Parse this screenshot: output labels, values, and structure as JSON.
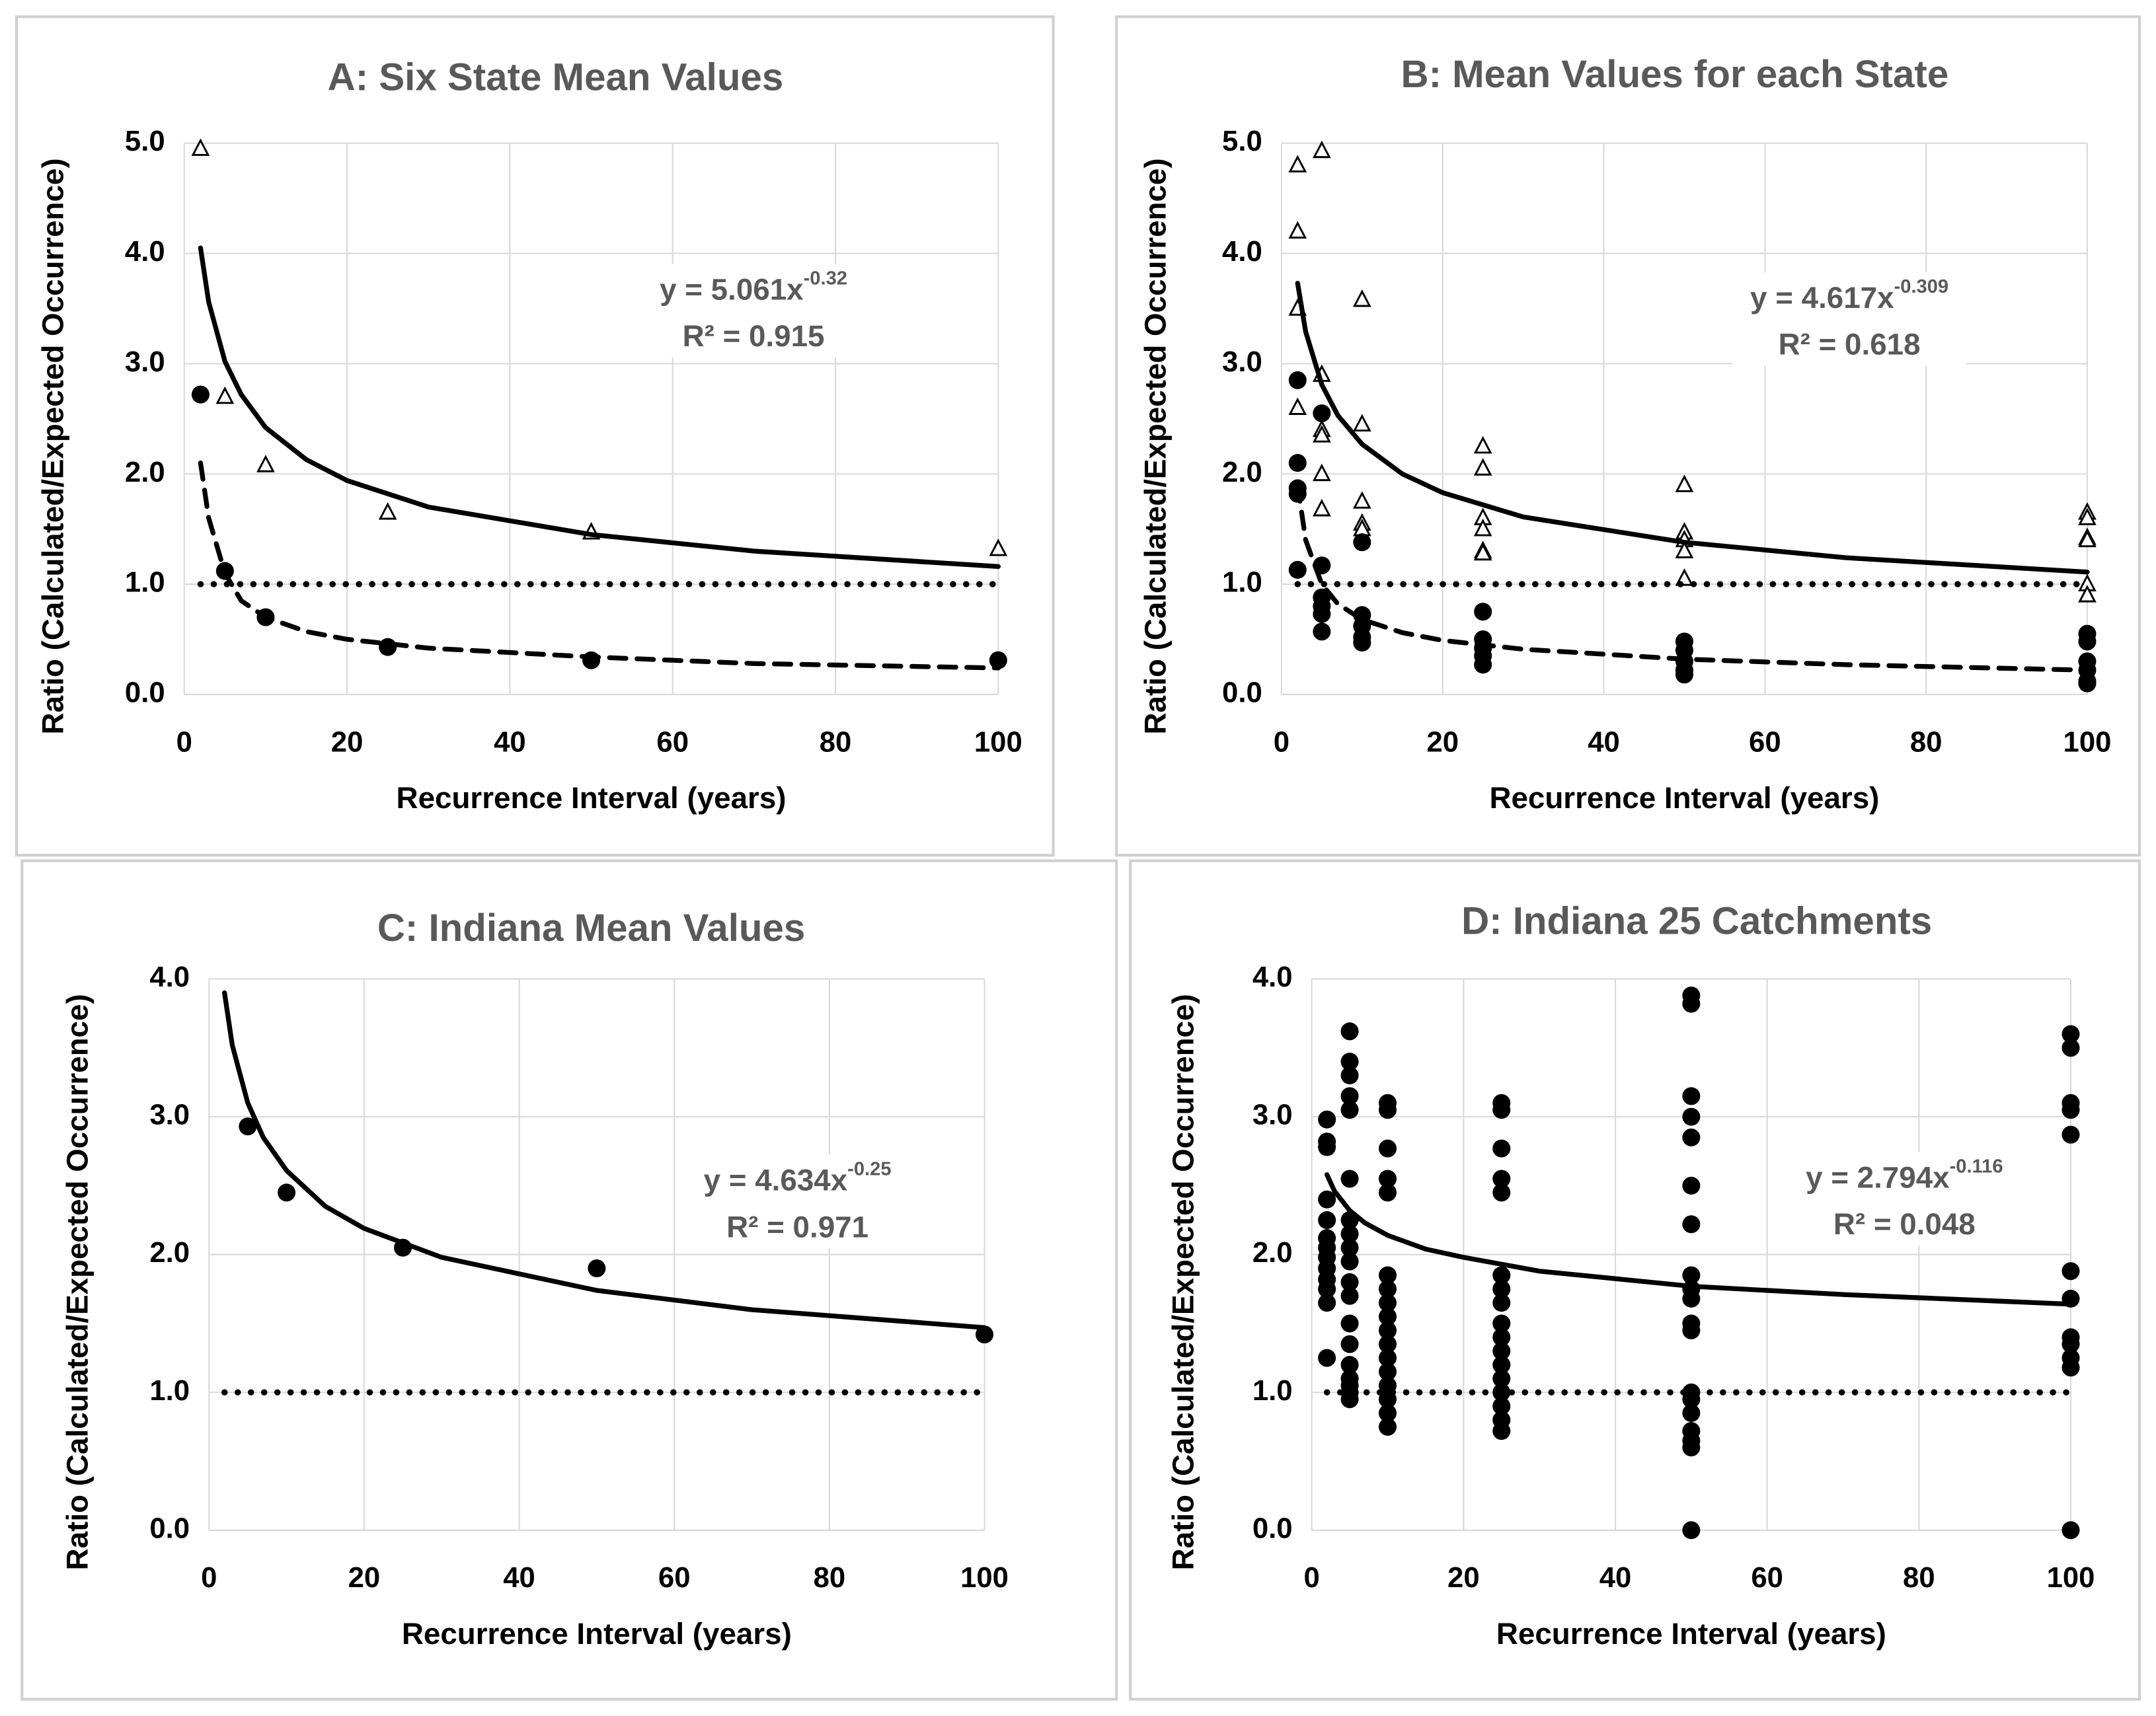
{
  "chart_data": [
    {
      "type": "scatter",
      "title": "A:  Six State Mean Values",
      "xlabel": "Recurrence Interval (years)",
      "ylabel": "Ratio (Calculated/Expected Occurrence)",
      "equation": "y = 5.061x",
      "equation_exponent": "-0.32",
      "r2": "R² = 0.915",
      "xlim": [
        0,
        100
      ],
      "xticks": [
        0,
        20,
        40,
        60,
        80,
        100
      ],
      "ylim": [
        0,
        5
      ],
      "yticks": [
        {
          "value": 0,
          "label": "0.0"
        },
        {
          "value": 1,
          "label": "1.0"
        },
        {
          "value": 2,
          "label": "2.0"
        },
        {
          "value": 3,
          "label": "3.0"
        },
        {
          "value": 4,
          "label": "4.0"
        },
        {
          "value": 5,
          "label": "5.0"
        }
      ],
      "grid": true,
      "series": [
        {
          "marker": "triangle",
          "color": "#000000",
          "x": [
            2,
            5,
            10,
            25,
            50,
            100
          ],
          "values": [
            4.95,
            2.7,
            2.08,
            1.65,
            1.47,
            1.32
          ]
        },
        {
          "marker": "circle",
          "color": "#000000",
          "x": [
            2,
            5,
            10,
            25,
            50,
            100
          ],
          "values": [
            2.72,
            1.12,
            0.7,
            0.43,
            0.31,
            0.31
          ]
        },
        {
          "line": "solid",
          "color": "#000000",
          "x": [
            2,
            3,
            5,
            7,
            10,
            15,
            20,
            30,
            50,
            70,
            100
          ],
          "values": [
            4.05,
            3.56,
            3.02,
            2.72,
            2.42,
            2.13,
            1.94,
            1.7,
            1.45,
            1.3,
            1.16
          ]
        },
        {
          "line": "dashed",
          "color": "#000000",
          "x": [
            2,
            3,
            5,
            7,
            10,
            15,
            20,
            30,
            50,
            70,
            100
          ],
          "values": [
            2.1,
            1.6,
            1.1,
            0.85,
            0.7,
            0.57,
            0.5,
            0.42,
            0.34,
            0.28,
            0.24
          ]
        },
        {
          "line": "dotted",
          "color": "#000000",
          "x": [
            2,
            100
          ],
          "values": [
            1,
            1
          ]
        }
      ]
    },
    {
      "type": "scatter",
      "title": "B: Mean Values for each State",
      "xlabel": "Recurrence Interval (years)",
      "ylabel": "Ratio (Calculated/Expected Occurrence)",
      "equation": "y = 4.617x",
      "equation_exponent": "-0.309",
      "r2": "R² = 0.618",
      "xlim": [
        0,
        100
      ],
      "xticks": [
        0,
        20,
        40,
        60,
        80,
        100
      ],
      "ylim": [
        0,
        5
      ],
      "yticks": [
        {
          "value": 0,
          "label": "0.0"
        },
        {
          "value": 1,
          "label": "1.0"
        },
        {
          "value": 2,
          "label": "2.0"
        },
        {
          "value": 3,
          "label": "3.0"
        },
        {
          "value": 4,
          "label": "4.0"
        },
        {
          "value": 5,
          "label": "5.0"
        }
      ],
      "grid": true,
      "series": [
        {
          "marker": "triangle",
          "color": "#000000",
          "x": [
            2,
            2,
            2,
            2,
            5,
            5,
            5,
            5,
            5,
            5,
            10,
            10,
            10,
            10,
            10,
            25,
            25,
            25,
            25,
            25,
            25,
            50,
            50,
            50,
            50,
            50,
            100,
            100,
            100,
            100,
            100,
            100
          ],
          "values": [
            4.8,
            4.2,
            3.5,
            2.6,
            4.93,
            2.9,
            2.4,
            2.35,
            2.0,
            1.68,
            3.58,
            2.45,
            1.75,
            1.55,
            1.5,
            2.25,
            2.05,
            1.6,
            1.5,
            1.3,
            1.28,
            1.9,
            1.47,
            1.4,
            1.3,
            1.05,
            1.65,
            1.6,
            1.42,
            1.4,
            1.0,
            0.9
          ]
        },
        {
          "marker": "circle",
          "color": "#000000",
          "x": [
            2,
            2,
            2,
            2,
            2,
            5,
            5,
            5,
            5,
            5,
            5,
            10,
            10,
            10,
            10,
            10,
            25,
            25,
            25,
            25,
            25,
            50,
            50,
            50,
            50,
            50,
            100,
            100,
            100,
            100,
            100,
            100
          ],
          "values": [
            2.85,
            2.1,
            1.87,
            1.82,
            1.13,
            2.55,
            1.17,
            0.88,
            0.8,
            0.73,
            0.57,
            1.38,
            0.72,
            0.62,
            0.52,
            0.47,
            0.75,
            0.5,
            0.42,
            0.35,
            0.27,
            0.48,
            0.4,
            0.3,
            0.22,
            0.18,
            0.55,
            0.48,
            0.3,
            0.22,
            0.12,
            0.1
          ]
        },
        {
          "line": "solid",
          "color": "#000000",
          "x": [
            2,
            3,
            5,
            7,
            10,
            15,
            20,
            30,
            50,
            70,
            100
          ],
          "values": [
            3.73,
            3.29,
            2.81,
            2.53,
            2.27,
            2.0,
            1.83,
            1.61,
            1.38,
            1.24,
            1.11
          ]
        },
        {
          "line": "dashed",
          "color": "#000000",
          "x": [
            2,
            3,
            5,
            7,
            10,
            15,
            20,
            30,
            50,
            70,
            100
          ],
          "values": [
            1.9,
            1.4,
            1.0,
            0.82,
            0.68,
            0.56,
            0.49,
            0.41,
            0.32,
            0.27,
            0.22
          ]
        },
        {
          "line": "dotted",
          "color": "#000000",
          "x": [
            2,
            100
          ],
          "values": [
            1,
            1
          ]
        }
      ]
    },
    {
      "type": "scatter",
      "title": "C: Indiana Mean Values",
      "xlabel": "Recurrence Interval (years)",
      "ylabel": "Ratio (Calculated/Expected Occurrence)",
      "equation": "y = 4.634x",
      "equation_exponent": "-0.25",
      "r2": "R² = 0.971",
      "xlim": [
        0,
        100
      ],
      "xticks": [
        0,
        20,
        40,
        60,
        80,
        100
      ],
      "ylim": [
        0,
        4
      ],
      "yticks": [
        {
          "value": 0,
          "label": "0.0"
        },
        {
          "value": 1,
          "label": "1.0"
        },
        {
          "value": 2,
          "label": "2.0"
        },
        {
          "value": 3,
          "label": "3.0"
        },
        {
          "value": 4,
          "label": "4.0"
        }
      ],
      "grid": true,
      "series": [
        {
          "marker": "circle",
          "color": "#000000",
          "x": [
            5,
            10,
            25,
            50,
            100
          ],
          "values": [
            2.93,
            2.45,
            2.05,
            1.9,
            1.42
          ]
        },
        {
          "line": "solid",
          "color": "#000000",
          "x": [
            2,
            3,
            5,
            7,
            10,
            15,
            20,
            30,
            50,
            70,
            100
          ],
          "values": [
            3.9,
            3.52,
            3.1,
            2.85,
            2.61,
            2.35,
            2.19,
            1.98,
            1.74,
            1.6,
            1.47
          ]
        },
        {
          "line": "dotted",
          "color": "#000000",
          "x": [
            2,
            100
          ],
          "values": [
            1,
            1
          ]
        }
      ]
    },
    {
      "type": "scatter",
      "title": "D: Indiana 25 Catchments",
      "xlabel": "Recurrence Interval (years)",
      "ylabel": "Ratio (Calculated/Expected Occurrence)",
      "equation": "y = 2.794x",
      "equation_exponent": "-0.116",
      "r2": "R² = 0.048",
      "xlim": [
        0,
        100
      ],
      "xticks": [
        0,
        20,
        40,
        60,
        80,
        100
      ],
      "ylim": [
        0,
        4
      ],
      "yticks": [
        {
          "value": 0,
          "label": "0.0"
        },
        {
          "value": 1,
          "label": "1.0"
        },
        {
          "value": 2,
          "label": "2.0"
        },
        {
          "value": 3,
          "label": "3.0"
        },
        {
          "value": 4,
          "label": "4.0"
        }
      ],
      "grid": true,
      "series": [
        {
          "marker": "circle",
          "color": "#000000",
          "x": [
            2,
            2,
            2,
            2,
            2,
            2,
            2,
            2,
            2,
            2,
            2,
            2,
            2,
            5,
            5,
            5,
            5,
            5,
            5,
            5,
            5,
            5,
            5,
            5,
            5,
            5,
            5,
            5,
            5,
            5,
            5,
            5,
            10,
            10,
            10,
            10,
            10,
            10,
            10,
            10,
            10,
            10,
            10,
            10,
            10,
            10,
            10,
            10,
            10,
            25,
            25,
            25,
            25,
            25,
            25,
            25,
            25,
            25,
            25,
            25,
            25,
            25,
            25,
            25,
            25,
            25,
            50,
            50,
            50,
            50,
            50,
            50,
            50,
            50,
            50,
            50,
            50,
            50,
            50,
            50,
            50,
            50,
            50,
            50,
            50,
            100,
            100,
            100,
            100,
            100,
            100,
            100,
            100,
            100,
            100,
            100,
            100
          ],
          "values": [
            2.98,
            2.82,
            2.78,
            2.4,
            2.25,
            2.12,
            2.05,
            1.98,
            1.9,
            1.82,
            1.75,
            1.65,
            1.25,
            3.62,
            3.4,
            3.3,
            3.15,
            3.05,
            2.55,
            2.25,
            2.15,
            2.05,
            1.95,
            1.8,
            1.7,
            1.5,
            1.35,
            1.2,
            1.1,
            1.05,
            1.0,
            0.95,
            3.1,
            3.05,
            2.77,
            2.55,
            2.45,
            1.85,
            1.75,
            1.65,
            1.55,
            1.45,
            1.35,
            1.25,
            1.15,
            1.05,
            0.95,
            0.85,
            0.75,
            3.1,
            3.05,
            2.77,
            2.55,
            2.45,
            1.85,
            1.75,
            1.65,
            1.5,
            1.4,
            1.3,
            1.2,
            1.1,
            1.0,
            0.9,
            0.8,
            0.72,
            3.88,
            3.82,
            3.15,
            3.0,
            2.85,
            2.5,
            2.22,
            1.85,
            1.75,
            1.68,
            1.5,
            1.45,
            1.0,
            0.95,
            0.85,
            0.72,
            0.65,
            0.6,
            0.0,
            3.6,
            3.5,
            3.1,
            3.05,
            2.87,
            1.88,
            1.68,
            1.4,
            1.35,
            1.25,
            1.18,
            0.0
          ]
        },
        {
          "line": "solid",
          "color": "#000000",
          "x": [
            2,
            3,
            5,
            7,
            10,
            15,
            20,
            30,
            50,
            70,
            100
          ],
          "values": [
            2.58,
            2.46,
            2.32,
            2.23,
            2.14,
            2.04,
            1.98,
            1.88,
            1.77,
            1.71,
            1.64
          ]
        },
        {
          "line": "dotted",
          "color": "#000000",
          "x": [
            2,
            100
          ],
          "values": [
            1,
            1
          ]
        }
      ]
    }
  ]
}
